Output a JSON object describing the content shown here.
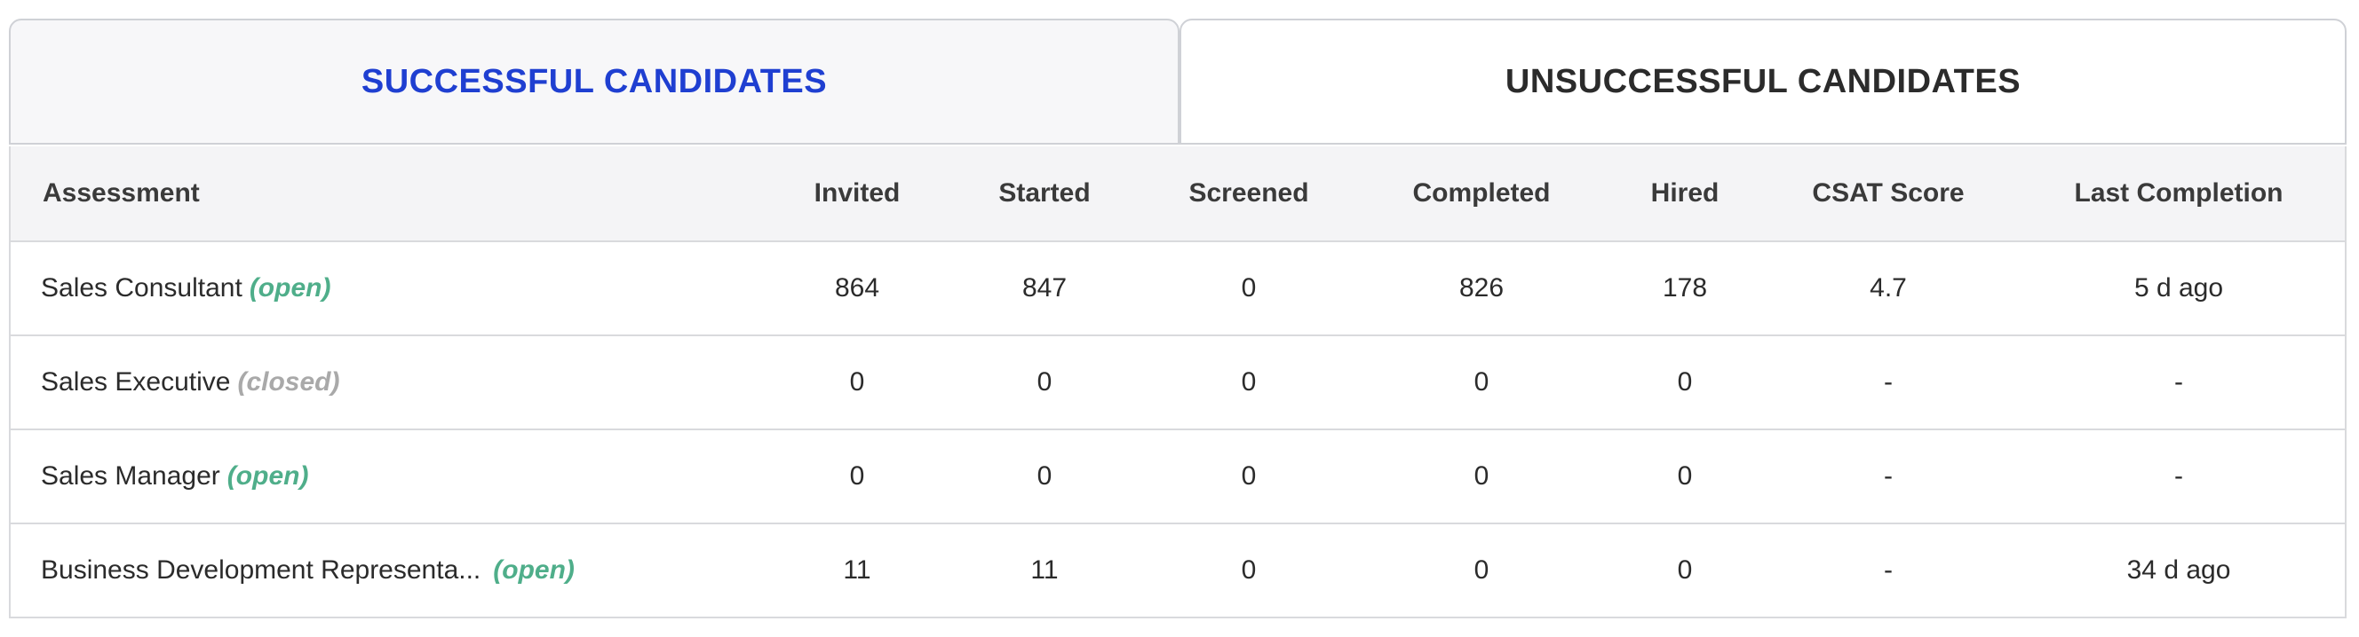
{
  "tabs": [
    {
      "label": "SUCCESSFUL CANDIDATES",
      "active": true
    },
    {
      "label": "UNSUCCESSFUL CANDIDATES",
      "active": false
    }
  ],
  "colors": {
    "active_tab_text": "#1f3fd1",
    "status_open": "#4fae8a",
    "status_closed": "#a9a9a9"
  },
  "table": {
    "headers": [
      "Assessment",
      "Invited",
      "Started",
      "Screened",
      "Completed",
      "Hired",
      "CSAT Score",
      "Last Completion"
    ],
    "rows": [
      {
        "name": "Sales Consultant",
        "status": "(open)",
        "invited": "864",
        "started": "847",
        "screened": "0",
        "completed": "826",
        "hired": "178",
        "csat": "4.7",
        "last_completion": "5 d ago"
      },
      {
        "name": "Sales Executive",
        "status": "(closed)",
        "invited": "0",
        "started": "0",
        "screened": "0",
        "completed": "0",
        "hired": "0",
        "csat": "-",
        "last_completion": "-"
      },
      {
        "name": "Sales Manager",
        "status": "(open)",
        "invited": "0",
        "started": "0",
        "screened": "0",
        "completed": "0",
        "hired": "0",
        "csat": "-",
        "last_completion": "-"
      },
      {
        "name": "Business Development Representa...",
        "status": "(open)",
        "invited": "11",
        "started": "11",
        "screened": "0",
        "completed": "0",
        "hired": "0",
        "csat": "-",
        "last_completion": "34 d ago"
      }
    ]
  }
}
